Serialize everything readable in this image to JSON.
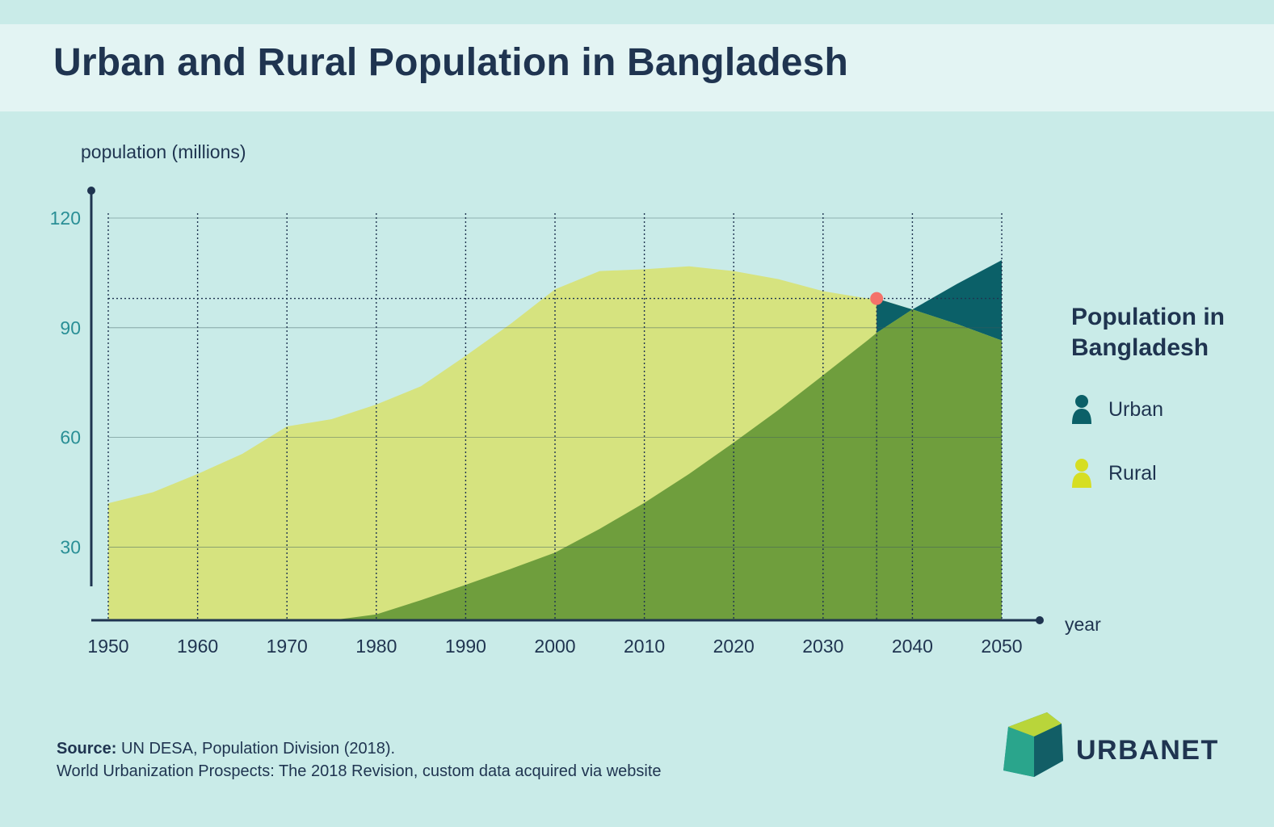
{
  "title": "Urban and Rural Population in Bangladesh",
  "legend": {
    "title": "Population in Bangladesh",
    "items": [
      {
        "label": "Urban",
        "color": "#0b6068",
        "icon": "person-icon"
      },
      {
        "label": "Rural",
        "color": "#d6de23",
        "icon": "person-icon"
      }
    ]
  },
  "source": {
    "label": "Source:",
    "line1": "UN DESA, Population Division (2018).",
    "line2": "World Urbanization Prospects: The 2018 Revision, custom data acquired via website"
  },
  "logo": {
    "text": "URBANET"
  },
  "chart_data": {
    "type": "area",
    "ylabel": "population (millions)",
    "xlabel": "year",
    "xlim": [
      1950,
      2050
    ],
    "ylim": [
      10,
      120
    ],
    "x_ticks": [
      1950,
      1960,
      1970,
      1980,
      1990,
      2000,
      2010,
      2020,
      2030,
      2040,
      2050
    ],
    "y_ticks": [
      30,
      60,
      90,
      120
    ],
    "grid": true,
    "crossover": {
      "x": 2036,
      "y": 98
    },
    "x": [
      1950,
      1955,
      1960,
      1965,
      1970,
      1975,
      1980,
      1985,
      1990,
      1995,
      2000,
      2005,
      2010,
      2015,
      2020,
      2025,
      2030,
      2035,
      2036,
      2040,
      2045,
      2050
    ],
    "series": [
      {
        "name": "Urban",
        "values": [
          1.8,
          2.1,
          2.6,
          3.5,
          4.8,
          6.5,
          11.6,
          15.5,
          19.7,
          24.0,
          28.5,
          35.0,
          42.1,
          50.0,
          58.6,
          67.5,
          77.0,
          86.6,
          88.6,
          95.0,
          102.0,
          108.5
        ]
      },
      {
        "name": "Rural",
        "values": [
          40.2,
          42.9,
          47.4,
          52.0,
          58.2,
          58.5,
          57.4,
          58.5,
          62.6,
          67.0,
          72.0,
          70.5,
          63.9,
          56.8,
          46.9,
          35.8,
          23.0,
          11.4,
          9.4,
          0.0,
          0.0,
          0.0
        ]
      },
      {
        "name": "",
        "values": [
          42.0,
          45.0,
          50.0,
          55.5,
          63.0,
          65.0,
          69.0,
          74.0,
          82.3,
          91.0,
          100.5,
          105.5,
          106.0,
          106.8,
          105.5,
          103.3,
          100.0,
          98.0,
          98.0,
          95.0,
          91.0,
          86.5
        ]
      }
    ],
    "colors": {
      "urban_dark": "#0b6068",
      "urban": "#6f9e3d",
      "rural": "#d6e37f",
      "crossover": "#f4726a",
      "text": "#1f3450",
      "tick": "#2a8f96"
    }
  }
}
